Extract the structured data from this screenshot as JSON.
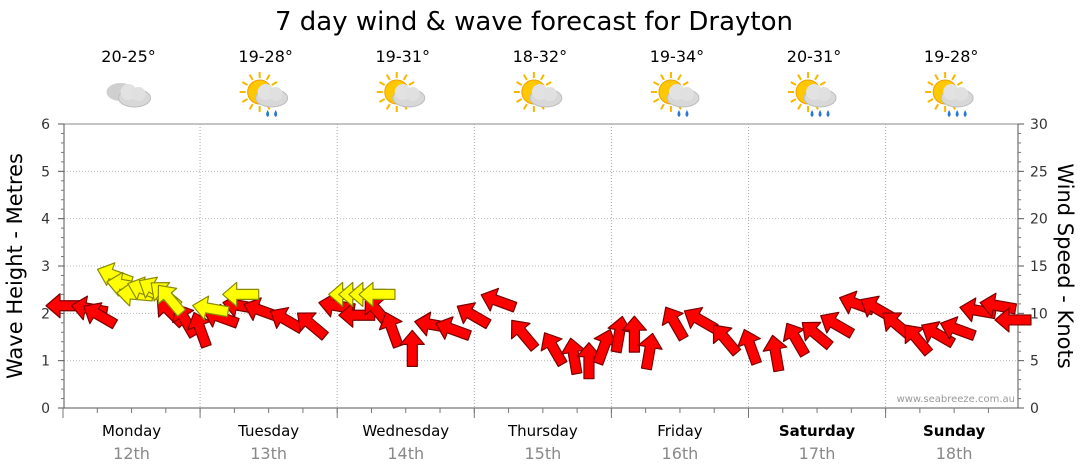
{
  "chart_data": {
    "type": "line",
    "title": "7 day wind & wave forecast for Drayton",
    "ylabel": "Wave Height - Metres",
    "y2label": "Wind Speed - Knots",
    "ylim": [
      0,
      6
    ],
    "y2lim": [
      0,
      30
    ],
    "yticks": [
      "0",
      "1",
      "2",
      "3",
      "4",
      "5",
      "6"
    ],
    "y2ticks": [
      "0",
      "5",
      "10",
      "15",
      "20",
      "25",
      "30"
    ],
    "grid": true,
    "watermark": "www.seabreeze.com.au",
    "days": [
      {
        "name": "Monday",
        "date": "12th",
        "temp": "20-25°",
        "icon": "cloudy-icon",
        "bold": false
      },
      {
        "name": "Tuesday",
        "date": "13th",
        "temp": "19-28°",
        "icon": "sun-cloud-rain-icon",
        "bold": false
      },
      {
        "name": "Wednesday",
        "date": "14th",
        "temp": "19-31°",
        "icon": "sun-cloud-icon",
        "bold": false
      },
      {
        "name": "Thursday",
        "date": "15th",
        "temp": "18-32°",
        "icon": "sun-cloud-icon",
        "bold": false
      },
      {
        "name": "Friday",
        "date": "16th",
        "temp": "19-34°",
        "icon": "sun-cloud-rain-icon",
        "bold": false
      },
      {
        "name": "Saturday",
        "date": "17th",
        "temp": "20-31°",
        "icon": "sun-cloud-storm-icon",
        "bold": true
      },
      {
        "name": "Sunday",
        "date": "18th",
        "temp": "19-28°",
        "icon": "sun-cloud-storm-icon",
        "bold": true
      }
    ],
    "series": [
      {
        "name": "Wind",
        "color": "#ff0000",
        "units": "knots",
        "points": [
          {
            "t": 0.0,
            "v": 10.8,
            "dir": 90
          },
          {
            "t": 0.25,
            "v": 10.5,
            "dir": 100
          },
          {
            "t": 0.35,
            "v": 9.8,
            "dir": 120
          },
          {
            "t": 1.05,
            "v": 10.2,
            "dir": 135
          },
          {
            "t": 1.2,
            "v": 9.3,
            "dir": 150
          },
          {
            "t": 1.35,
            "v": 8.3,
            "dir": 160
          },
          {
            "t": 1.55,
            "v": 9.6,
            "dir": 110
          },
          {
            "t": 1.75,
            "v": 10.8,
            "dir": 100
          },
          {
            "t": 1.95,
            "v": 10.3,
            "dir": 110
          },
          {
            "t": 2.2,
            "v": 9.3,
            "dir": 120
          },
          {
            "t": 2.45,
            "v": 8.8,
            "dir": 130
          },
          {
            "t": 2.7,
            "v": 10.8,
            "dir": 100
          },
          {
            "t": 2.9,
            "v": 9.8,
            "dir": 90
          },
          {
            "t": 3.1,
            "v": 10.3,
            "dir": 140
          },
          {
            "t": 3.25,
            "v": 8.3,
            "dir": 160
          },
          {
            "t": 3.45,
            "v": 6.3,
            "dir": 180
          },
          {
            "t": 3.65,
            "v": 8.8,
            "dir": 100
          },
          {
            "t": 3.85,
            "v": 8.3,
            "dir": 110
          },
          {
            "t": 4.05,
            "v": 9.8,
            "dir": 120
          },
          {
            "t": 4.3,
            "v": 11.3,
            "dir": 110
          },
          {
            "t": 4.55,
            "v": 7.8,
            "dir": 140
          },
          {
            "t": 4.85,
            "v": 6.3,
            "dir": 150
          },
          {
            "t": 5.05,
            "v": 5.5,
            "dir": 170
          },
          {
            "t": 5.2,
            "v": 5.0,
            "dir": 180
          },
          {
            "t": 5.35,
            "v": 6.5,
            "dir": 200
          },
          {
            "t": 5.5,
            "v": 7.8,
            "dir": 190
          },
          {
            "t": 5.65,
            "v": 7.8,
            "dir": 180
          },
          {
            "t": 5.8,
            "v": 6.0,
            "dir": 190
          },
          {
            "t": 6.05,
            "v": 9.0,
            "dir": 150
          },
          {
            "t": 6.3,
            "v": 9.3,
            "dir": 120
          },
          {
            "t": 6.55,
            "v": 7.3,
            "dir": 140
          },
          {
            "t": 6.8,
            "v": 6.5,
            "dir": 160
          },
          {
            "t": 7.05,
            "v": 5.8,
            "dir": 170
          },
          {
            "t": 7.25,
            "v": 7.3,
            "dir": 150
          },
          {
            "t": 7.45,
            "v": 7.8,
            "dir": 130
          },
          {
            "t": 7.65,
            "v": 8.8,
            "dir": 120
          },
          {
            "t": 7.85,
            "v": 11.0,
            "dir": 110
          },
          {
            "t": 8.05,
            "v": 10.5,
            "dir": 120
          },
          {
            "t": 8.25,
            "v": 8.8,
            "dir": 130
          },
          {
            "t": 8.45,
            "v": 7.3,
            "dir": 140
          },
          {
            "t": 8.65,
            "v": 7.8,
            "dir": 120
          },
          {
            "t": 8.85,
            "v": 8.3,
            "dir": 110
          },
          {
            "t": 9.05,
            "v": 10.3,
            "dir": 100
          },
          {
            "t": 9.25,
            "v": 10.8,
            "dir": 100
          },
          {
            "t": 9.4,
            "v": 9.3,
            "dir": 90
          }
        ]
      },
      {
        "name": "Waves",
        "color": "#ffff00",
        "units": "metres",
        "points": [
          {
            "t": 0.5,
            "v": 2.8,
            "dir": 110
          },
          {
            "t": 0.6,
            "v": 2.6,
            "dir": 100
          },
          {
            "t": 0.7,
            "v": 2.4,
            "dir": 95
          },
          {
            "t": 0.8,
            "v": 2.5,
            "dir": 110
          },
          {
            "t": 0.9,
            "v": 2.5,
            "dir": 120
          },
          {
            "t": 1.0,
            "v": 2.4,
            "dir": 130
          },
          {
            "t": 1.05,
            "v": 2.3,
            "dir": 140
          },
          {
            "t": 1.45,
            "v": 2.1,
            "dir": 100
          },
          {
            "t": 1.75,
            "v": 2.4,
            "dir": 90
          },
          {
            "t": 2.8,
            "v": 2.4,
            "dir": 90
          },
          {
            "t": 2.9,
            "v": 2.4,
            "dir": 90
          },
          {
            "t": 3.0,
            "v": 2.4,
            "dir": 90
          },
          {
            "t": 3.1,
            "v": 2.4,
            "dir": 90
          }
        ]
      }
    ]
  }
}
